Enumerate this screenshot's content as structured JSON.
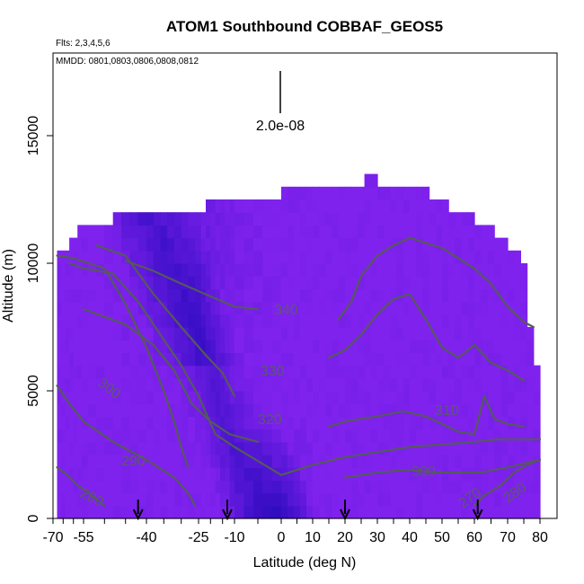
{
  "chart_data": {
    "type": "heatmap",
    "title": "ATOM1 Southbound COBBAF_GEOS5",
    "subtitle_flights": "Flts: 2,3,4,5,6",
    "subtitle_dates": "MMDD: 0801,0803,0806,0808,0812",
    "xlabel": "Latitude (deg N)",
    "ylabel": "Altitude (m)",
    "xlim": [
      -70,
      80
    ],
    "ylim": [
      0,
      17500
    ],
    "x_tick_labels": [
      "-70",
      "-55",
      "-40",
      "-25",
      "-10",
      "0",
      "10",
      "20",
      "30",
      "40",
      "50",
      "60",
      "70",
      "80"
    ],
    "y_tick_labels": [
      "0",
      "5000",
      "10000",
      "15000"
    ],
    "scale_label": "2.0e-08",
    "contour_labels": [
      "340",
      "330",
      "320",
      "310",
      "300",
      "290",
      "280",
      "280",
      "270",
      "300"
    ],
    "arrow_latitudes": [
      -42,
      -13,
      20,
      61
    ],
    "contours": [
      {
        "level": 340,
        "points": [
          [
            -45,
            10100
          ],
          [
            -38,
            9700
          ],
          [
            -30,
            9200
          ],
          [
            -20,
            8700
          ],
          [
            -10,
            8300
          ],
          [
            -5,
            8200
          ]
        ]
      },
      {
        "level": 340,
        "points": [
          [
            18,
            7800
          ],
          [
            22,
            8500
          ],
          [
            25,
            9500
          ],
          [
            30,
            10300
          ],
          [
            35,
            10700
          ],
          [
            40,
            11000
          ],
          [
            45,
            10800
          ],
          [
            50,
            10600
          ],
          [
            55,
            10200
          ],
          [
            60,
            9800
          ],
          [
            65,
            9200
          ],
          [
            70,
            8300
          ],
          [
            75,
            7700
          ],
          [
            78,
            7500
          ]
        ]
      },
      {
        "level": 330,
        "points": [
          [
            -52,
            10700
          ],
          [
            -45,
            10300
          ],
          [
            -38,
            8800
          ],
          [
            -30,
            7500
          ],
          [
            -22,
            6400
          ],
          [
            -15,
            5700
          ],
          [
            -10,
            4800
          ]
        ]
      },
      {
        "level": 330,
        "points": [
          [
            15,
            6300
          ],
          [
            20,
            6600
          ],
          [
            25,
            7200
          ],
          [
            30,
            8000
          ],
          [
            35,
            8600
          ],
          [
            40,
            8800
          ],
          [
            45,
            7800
          ],
          [
            50,
            6700
          ],
          [
            55,
            6300
          ],
          [
            60,
            6800
          ],
          [
            65,
            6100
          ],
          [
            70,
            5800
          ],
          [
            75,
            5400
          ]
        ]
      },
      {
        "level": 320,
        "points": [
          [
            -55,
            8200
          ],
          [
            -45,
            7600
          ],
          [
            -38,
            6800
          ],
          [
            -32,
            5800
          ],
          [
            -27,
            4500
          ],
          [
            -20,
            3800
          ],
          [
            -12,
            3300
          ],
          [
            -5,
            3000
          ]
        ]
      },
      {
        "level": 320,
        "points": [
          [
            15,
            3600
          ],
          [
            20,
            3800
          ],
          [
            25,
            3900
          ],
          [
            30,
            4000
          ],
          [
            38,
            4200
          ],
          [
            45,
            4000
          ],
          [
            50,
            3700
          ],
          [
            55,
            3400
          ],
          [
            60,
            3300
          ],
          [
            63,
            4800
          ],
          [
            66,
            3900
          ],
          [
            70,
            3700
          ],
          [
            75,
            3600
          ]
        ]
      },
      {
        "level": 310,
        "points": [
          [
            -62,
            10000
          ],
          [
            -55,
            9800
          ],
          [
            -48,
            9600
          ],
          [
            -42,
            8500
          ],
          [
            -36,
            7200
          ],
          [
            -30,
            6000
          ],
          [
            -25,
            4800
          ],
          [
            -18,
            3300
          ],
          [
            -10,
            2800
          ],
          [
            0,
            1700
          ],
          [
            10,
            2100
          ]
        ]
      },
      {
        "level": 310,
        "points": [
          [
            10,
            2100
          ],
          [
            20,
            2400
          ],
          [
            30,
            2600
          ],
          [
            40,
            2800
          ],
          [
            50,
            2900
          ],
          [
            60,
            3000
          ],
          [
            67,
            3100
          ],
          [
            75,
            3100
          ],
          [
            80,
            3100
          ]
        ]
      },
      {
        "level": 300,
        "points": [
          [
            -68,
            10300
          ],
          [
            -60,
            10200
          ],
          [
            -50,
            9800
          ],
          [
            -45,
            8400
          ],
          [
            -40,
            6700
          ],
          [
            -35,
            5000
          ],
          [
            -32,
            3800
          ],
          [
            -30,
            2800
          ],
          [
            -28,
            2000
          ]
        ]
      },
      {
        "level": 300,
        "points": [
          [
            20,
            1600
          ],
          [
            30,
            1800
          ],
          [
            40,
            1900
          ],
          [
            48,
            1800
          ],
          [
            55,
            1800
          ],
          [
            62,
            1800
          ],
          [
            70,
            2000
          ],
          [
            80,
            2300
          ]
        ]
      },
      {
        "level": 290,
        "points": [
          [
            -68,
            5200
          ],
          [
            -62,
            4500
          ],
          [
            -55,
            3800
          ],
          [
            -48,
            3000
          ],
          [
            -40,
            2300
          ],
          [
            -32,
            1600
          ],
          [
            -28,
            1000
          ],
          [
            -26,
            500
          ]
        ]
      },
      {
        "level": 280,
        "points": [
          [
            -68,
            2000
          ],
          [
            -63,
            1700
          ],
          [
            -58,
            1300
          ],
          [
            -53,
            900
          ],
          [
            -50,
            500
          ]
        ]
      },
      {
        "level": 280,
        "points": [
          [
            60,
            500
          ],
          [
            63,
            900
          ],
          [
            68,
            1300
          ],
          [
            72,
            1800
          ],
          [
            76,
            2100
          ],
          [
            80,
            2300
          ]
        ]
      }
    ]
  }
}
